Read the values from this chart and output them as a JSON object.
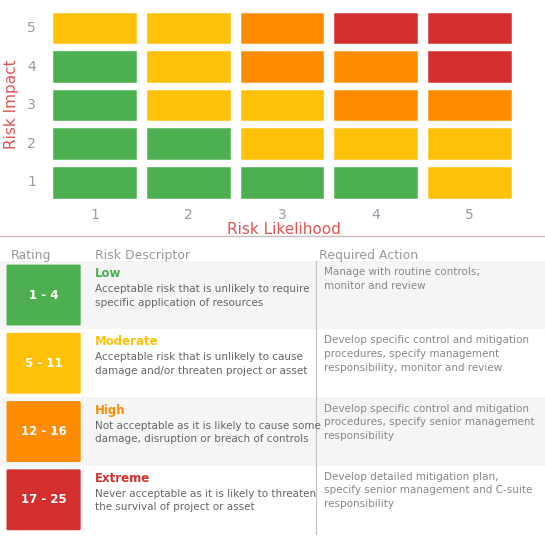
{
  "matrix": {
    "grid": [
      [
        "#4CAF50",
        "#4CAF50",
        "#4CAF50",
        "#4CAF50",
        "#FFC107"
      ],
      [
        "#4CAF50",
        "#4CAF50",
        "#FFC107",
        "#FFC107",
        "#FFC107"
      ],
      [
        "#4CAF50",
        "#FFC107",
        "#FFC107",
        "#FF8C00",
        "#FF8C00"
      ],
      [
        "#4CAF50",
        "#FFC107",
        "#FF8C00",
        "#FF8C00",
        "#D32F2F"
      ],
      [
        "#FFC107",
        "#FFC107",
        "#FF8C00",
        "#D32F2F",
        "#D32F2F"
      ]
    ],
    "x_labels": [
      "1",
      "2",
      "3",
      "4",
      "5"
    ],
    "y_labels": [
      "1",
      "2",
      "3",
      "4",
      "5"
    ],
    "x_title": "Risk Likelihood",
    "y_title": "Risk Impact",
    "title_color": "#E05555",
    "label_color": "#9999AA"
  },
  "legend": {
    "header_color": "#999999",
    "col_headers": [
      "Rating",
      "Risk Descriptor",
      "Required Action"
    ],
    "items": [
      {
        "color": "#4CAF50",
        "rating": "1 - 4",
        "level": "Low",
        "level_color": "#4CAF50",
        "description": "Acceptable risk that is unlikely to require\nspecific application of resources",
        "action": "Manage with routine controls;\nmonitor and review",
        "row_bg": "#F5F5F5"
      },
      {
        "color": "#FFC107",
        "rating": "5 - 11",
        "level": "Moderate",
        "level_color": "#FFC107",
        "description": "Acceptable risk that is unlikely to cause\ndamage and/or threaten project or asset",
        "action": "Develop specific control and mitigation\nprocedures, specify management\nresponsibility, monitor and review",
        "row_bg": "#FFFFFF"
      },
      {
        "color": "#FF8C00",
        "rating": "12 - 16",
        "level": "High",
        "level_color": "#FF8C00",
        "description": "Not acceptable as it is likely to cause some\ndamage, disruption or breach of controls",
        "action": "Develop specific control and mitigation\nprocedures, specify senior management\nresponsibility",
        "row_bg": "#F5F5F5"
      },
      {
        "color": "#D32F2F",
        "rating": "17 - 25",
        "level": "Extreme",
        "level_color": "#D32F2F",
        "description": "Never acceptable as it is likely to threaten\nthe survival of project or asset",
        "action": "Develop detailed mitigation plan,\nspecify senior management and C-suite\nresponsibility",
        "row_bg": "#FFFFFF"
      }
    ]
  },
  "divider_color": "#CCBBBB",
  "bg_color": "#FFFFFF",
  "text_color": "#888888",
  "desc_color": "#666666"
}
